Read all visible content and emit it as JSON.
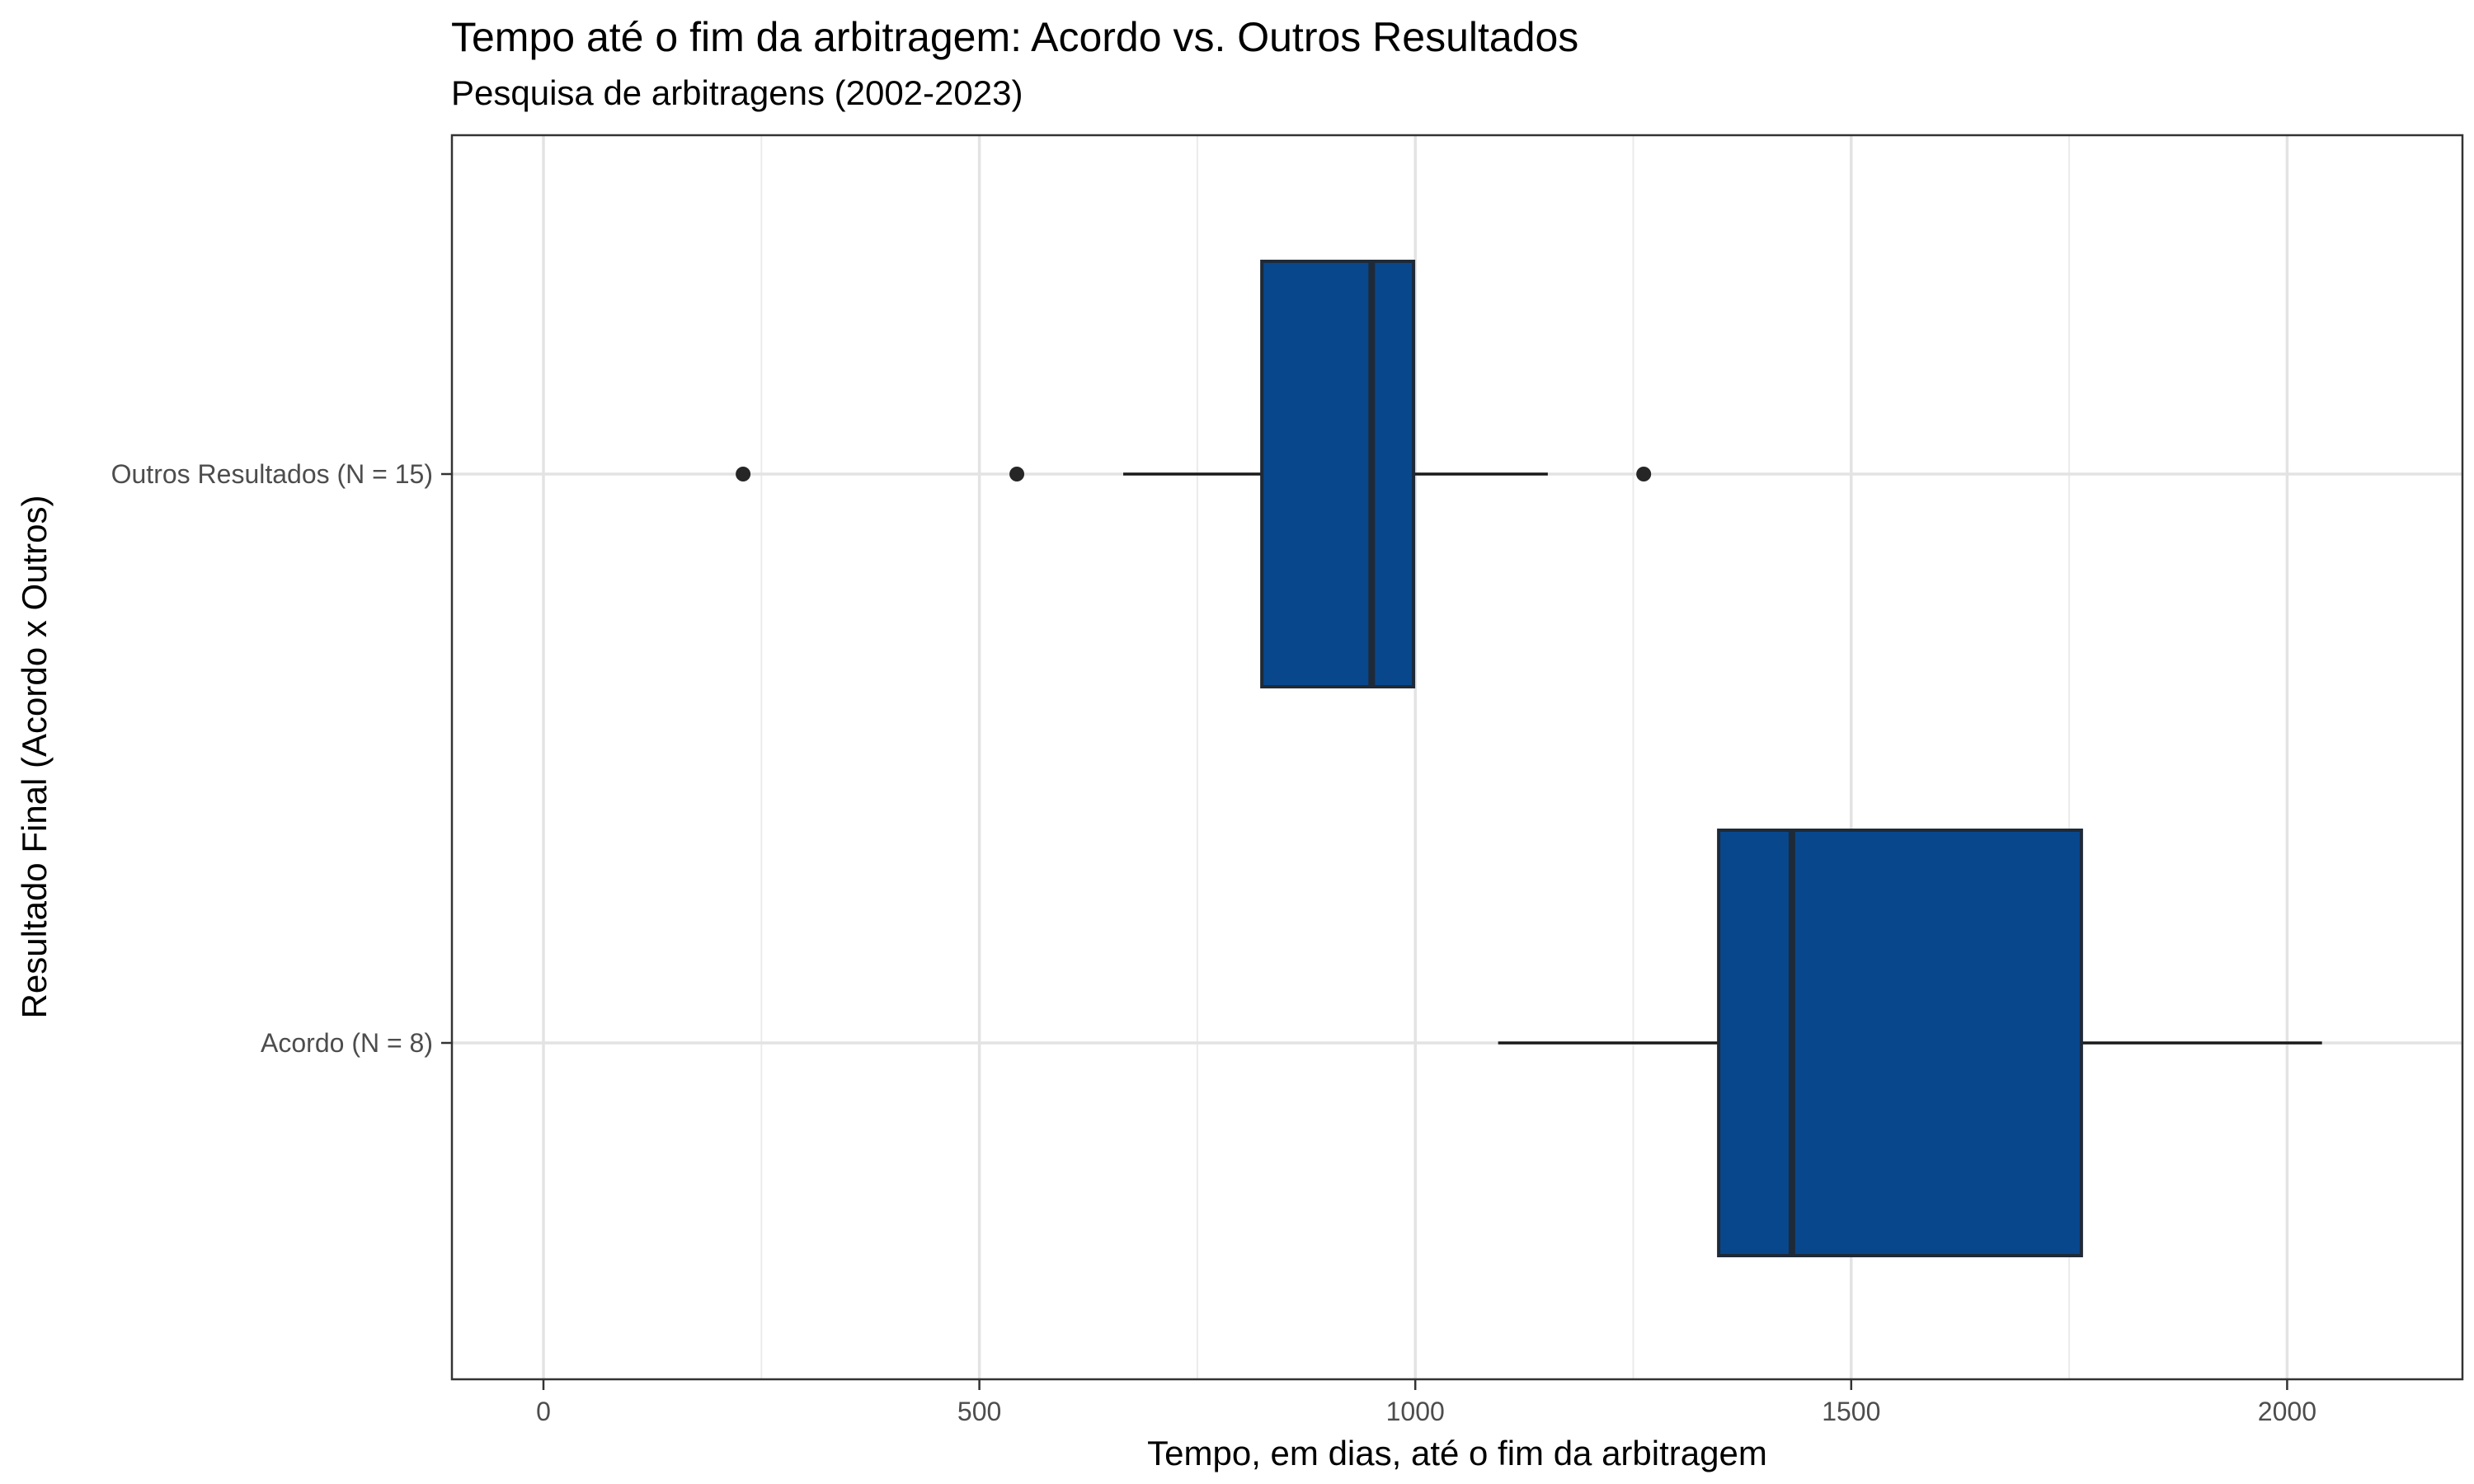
{
  "chart_data": {
    "type": "boxplot",
    "title": "Tempo até o fim da arbitragem: Acordo vs. Outros Resultados",
    "subtitle": "Pesquisa de arbitragens (2002-2023)",
    "xlabel": "Tempo, em dias, até o fim da arbitragem",
    "ylabel": "Resultado Final (Acordo x Outros)",
    "xlim": [
      -105,
      2205
    ],
    "xticks": [
      0,
      500,
      1000,
      1500,
      2000
    ],
    "xtick_labels": [
      "0",
      "500",
      "1000",
      "1500",
      "2000"
    ],
    "grid": true,
    "orientation": "horizontal",
    "box_fill": "#08478c",
    "box_stroke": "#1f2a38",
    "categories": [
      "Outros Resultados (N = 15)",
      "Acordo (N = 8)"
    ],
    "series": [
      {
        "category": "Outros Resultados (N = 15)",
        "whisker_low": 665,
        "q1": 824,
        "median": 950,
        "q3": 998,
        "whisker_high": 1152,
        "outliers": [
          229,
          543,
          1262
        ]
      },
      {
        "category": "Acordo (N = 8)",
        "whisker_low": 1095,
        "q1": 1348,
        "median": 1432,
        "q3": 1764,
        "whisker_high": 2040,
        "outliers": []
      }
    ]
  }
}
